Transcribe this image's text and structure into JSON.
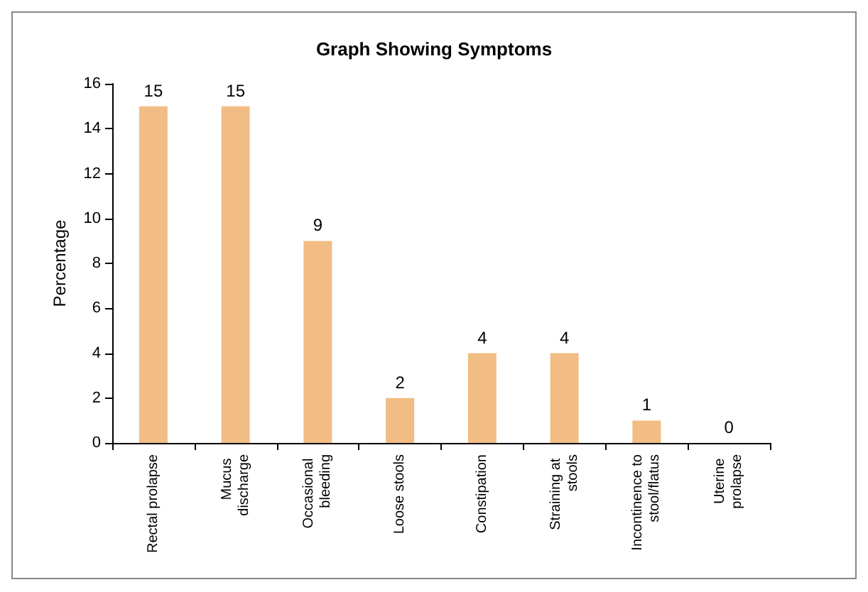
{
  "chart_data": {
    "type": "bar",
    "title": "Graph Showing Symptoms",
    "ylabel": "Percentage",
    "categories": [
      "Rectal prolapse",
      "Mucus discharge",
      "Occasional bleeding",
      "Loose stools",
      "Constipation",
      "Straining at stools",
      "Incontinence to stool/flatus",
      "Uterine prolapse"
    ],
    "values": [
      15,
      15,
      9,
      2,
      4,
      4,
      1,
      0
    ],
    "color": "#f2bd84",
    "ylim": [
      0,
      16
    ],
    "yticks": [
      0,
      2,
      4,
      6,
      8,
      10,
      12,
      14,
      16
    ],
    "data_labels": true
  }
}
